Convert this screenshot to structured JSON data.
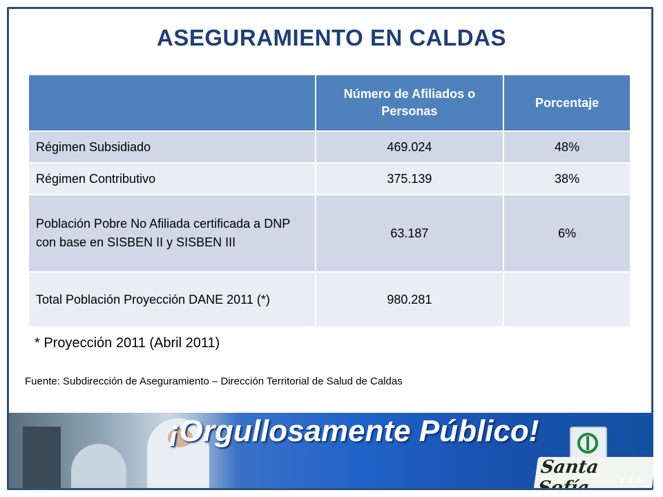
{
  "title": "ASEGURAMIENTO EN CALDAS",
  "table": {
    "headers": [
      "",
      "Número de Afiliados o Personas",
      "Porcentaje"
    ],
    "rows": [
      [
        "Régimen Subsidiado",
        "469.024",
        "48%"
      ],
      [
        "Régimen Contributivo",
        "375.139",
        "38%"
      ],
      [
        "Población Pobre No Afiliada certificada a DNP con base en SISBEN II y SISBEN III",
        "63.187",
        "6%"
      ],
      [
        "Total Población Proyección DANE 2011 (*)",
        "980.281",
        ""
      ]
    ]
  },
  "note": "* Proyección 2011 (Abril 2011)",
  "source": "Fuente: Subdirección de Aseguramiento – Dirección Territorial de Salud de Caldas",
  "banner": {
    "slogan": "¡Orgullosamente Público!",
    "logo_name": "Santa Sofía",
    "logo_sub": "E.S.E"
  },
  "colors": {
    "title": "#1f3e73",
    "header_bg": "#4f81bd",
    "row_odd": "#d0d8e8",
    "row_even": "#e9edf4",
    "frame": "#2f4f78"
  }
}
